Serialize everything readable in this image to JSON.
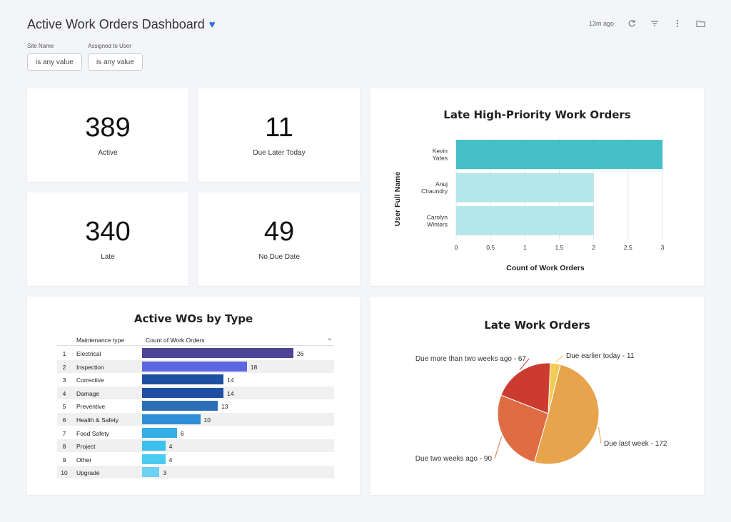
{
  "header": {
    "title": "Active Work Orders Dashboard",
    "updated": "13m ago",
    "icons": [
      "heart-icon",
      "refresh-icon",
      "filter-icon",
      "more-vertical-icon",
      "folder-icon"
    ]
  },
  "filters": [
    {
      "label": "Site Name",
      "value": "is any value"
    },
    {
      "label": "Assigned to User",
      "value": "is any value"
    }
  ],
  "kpis": [
    {
      "value": "389",
      "label": "Active"
    },
    {
      "value": "11",
      "label": "Due Later Today"
    },
    {
      "value": "340",
      "label": "Late"
    },
    {
      "value": "49",
      "label": "No Due Date"
    }
  ],
  "late_high_priority": {
    "title": "Late High-Priority Work Orders",
    "ylabel": "User Full Name",
    "xlabel": "Count of Work Orders"
  },
  "wos_by_type": {
    "title": "Active WOs by Type",
    "col_type": "Maintenance type",
    "col_count": "Count of Work Orders",
    "sort_icon": "chevron-down-icon"
  },
  "late_work_orders": {
    "title": "Late Work Orders"
  },
  "chart_data": [
    {
      "type": "bar",
      "orientation": "horizontal",
      "title": "Late High-Priority Work Orders",
      "categories": [
        "Kevin Yates",
        "Anuj Chaundry",
        "Carolyn Winters"
      ],
      "values": [
        3,
        2,
        2
      ],
      "xlabel": "Count of Work Orders",
      "ylabel": "User Full Name",
      "xlim": [
        0,
        3
      ],
      "xticks": [
        "0",
        "0.5",
        "1",
        "1.5",
        "2",
        "2.5",
        "3"
      ],
      "colors": [
        "#45c0c8",
        "#b4e7ea",
        "#b4e7ea"
      ],
      "grid": true
    },
    {
      "type": "table",
      "title": "Active WOs by Type",
      "columns": [
        "Maintenance type",
        "Count of Work Orders"
      ],
      "rows": [
        {
          "rank": "1",
          "type": "Electrical",
          "value": 26,
          "color": "#4e4496"
        },
        {
          "rank": "2",
          "type": "Inspection",
          "value": 18,
          "color": "#5b66e0"
        },
        {
          "rank": "3",
          "type": "Corrective",
          "value": 14,
          "color": "#1e4fa0"
        },
        {
          "rank": "4",
          "type": "Damage",
          "value": 14,
          "color": "#1e4fa0"
        },
        {
          "rank": "5",
          "type": "Preventive",
          "value": 13,
          "color": "#2d6fb6"
        },
        {
          "rank": "6",
          "type": "Health & Safety",
          "value": 10,
          "color": "#2e8fd6"
        },
        {
          "rank": "7",
          "type": "Food Safety",
          "value": 6,
          "color": "#35aee6"
        },
        {
          "rank": "8",
          "type": "Project",
          "value": 4,
          "color": "#3cc0ec"
        },
        {
          "rank": "9",
          "type": "Other",
          "value": 4,
          "color": "#4acbf0"
        },
        {
          "rank": "10",
          "type": "Upgrade",
          "value": 3,
          "color": "#6bd2f4"
        }
      ]
    },
    {
      "type": "pie",
      "title": "Late Work Orders",
      "slices": [
        {
          "label": "Due earlier today - 11",
          "value": 11,
          "color": "#f2cc55"
        },
        {
          "label": "Due last week - 172",
          "value": 172,
          "color": "#e8a44c"
        },
        {
          "label": "Due two weeks ago - 90",
          "value": 90,
          "color": "#e06c44"
        },
        {
          "label": "Due more than two weeks ago - 67",
          "value": 67,
          "color": "#cc3b30"
        }
      ]
    }
  ]
}
